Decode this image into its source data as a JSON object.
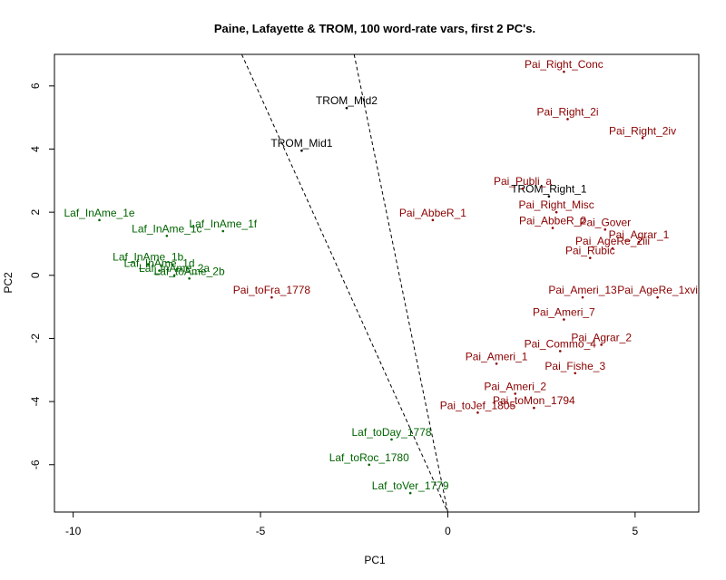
{
  "chart_data": {
    "type": "scatter",
    "title": "Paine, Lafayette & TROM, 100 word-rate vars, first 2 PC's.",
    "xlabel": "PC1",
    "ylabel": "PC2",
    "xlim": [
      -10.5,
      6.7
    ],
    "ylim": [
      -7.5,
      7.0
    ],
    "xticks": [
      -10,
      -5,
      0,
      5
    ],
    "yticks": [
      -6,
      -4,
      -2,
      0,
      2,
      4,
      6
    ],
    "grid": false,
    "legend": "none",
    "colors": {
      "Laf": "#006400",
      "Pai": "#8B0000",
      "TROM": "#000000",
      "line": "#000000"
    },
    "points": [
      {
        "label": "Laf_InAme_1e",
        "x": -9.3,
        "y": 1.75,
        "group": "Laf"
      },
      {
        "label": "Laf_InAme_1c",
        "x": -7.5,
        "y": 1.25,
        "group": "Laf"
      },
      {
        "label": "Laf_InAme_1f",
        "x": -6.0,
        "y": 1.4,
        "group": "Laf"
      },
      {
        "label": "Laf_InAme_1b",
        "x": -8.0,
        "y": 0.35,
        "group": "Laf"
      },
      {
        "label": "Laf_InAme_1d",
        "x": -7.7,
        "y": 0.15,
        "group": "Laf"
      },
      {
        "label": "Laf_InAme_2a",
        "x": -7.3,
        "y": 0.0,
        "group": "Laf"
      },
      {
        "label": "Laf_toAme_2b",
        "x": -6.9,
        "y": -0.1,
        "group": "Laf"
      },
      {
        "label": "Laf_toDay_1778",
        "x": -1.5,
        "y": -5.2,
        "group": "Laf"
      },
      {
        "label": "Laf_toRoc_1780",
        "x": -2.1,
        "y": -6.0,
        "group": "Laf"
      },
      {
        "label": "Laf_toVer_1779",
        "x": -1.0,
        "y": -6.9,
        "group": "Laf"
      },
      {
        "label": "TROM_Mid2",
        "x": -2.7,
        "y": 5.3,
        "group": "TROM"
      },
      {
        "label": "TROM_Mid1",
        "x": -3.9,
        "y": 3.95,
        "group": "TROM"
      },
      {
        "label": "TROM_Right_1",
        "x": 2.7,
        "y": 2.5,
        "group": "TROM"
      },
      {
        "label": "Pai_Right_Conc",
        "x": 3.1,
        "y": 6.45,
        "group": "Pai"
      },
      {
        "label": "Pai_Right_2i",
        "x": 3.2,
        "y": 4.95,
        "group": "Pai"
      },
      {
        "label": "Pai_Right_2iv",
        "x": 5.2,
        "y": 4.35,
        "group": "Pai"
      },
      {
        "label": "Pai_Publi_a",
        "x": 2.0,
        "y": 2.75,
        "group": "Pai"
      },
      {
        "label": "Pai_AbbeR_1",
        "x": -0.4,
        "y": 1.75,
        "group": "Pai"
      },
      {
        "label": "Pai_Right_Misc",
        "x": 2.9,
        "y": 2.0,
        "group": "Pai"
      },
      {
        "label": "Pai_AbbeR_2",
        "x": 2.8,
        "y": 1.5,
        "group": "Pai"
      },
      {
        "label": "Pai_Gover",
        "x": 4.2,
        "y": 1.45,
        "group": "Pai"
      },
      {
        "label": "Pai_Agrar_1",
        "x": 5.1,
        "y": 1.05,
        "group": "Pai"
      },
      {
        "label": "Pai_AgeRe_2iii",
        "x": 4.4,
        "y": 0.85,
        "group": "Pai"
      },
      {
        "label": "Pai_Rubic",
        "x": 3.8,
        "y": 0.55,
        "group": "Pai"
      },
      {
        "label": "Pai_toFra_1778",
        "x": -4.7,
        "y": -0.7,
        "group": "Pai"
      },
      {
        "label": "Pai_Ameri_13",
        "x": 3.6,
        "y": -0.7,
        "group": "Pai"
      },
      {
        "label": "Pai_AgeRe_1xvi",
        "x": 5.6,
        "y": -0.7,
        "group": "Pai"
      },
      {
        "label": "Pai_Ameri_7",
        "x": 3.1,
        "y": -1.4,
        "group": "Pai"
      },
      {
        "label": "Pai_Agrar_2",
        "x": 4.1,
        "y": -2.2,
        "group": "Pai"
      },
      {
        "label": "Pai_Commo_4",
        "x": 3.0,
        "y": -2.4,
        "group": "Pai"
      },
      {
        "label": "Pai_Ameri_1",
        "x": 1.3,
        "y": -2.8,
        "group": "Pai"
      },
      {
        "label": "Pai_Fishe_3",
        "x": 3.4,
        "y": -3.1,
        "group": "Pai"
      },
      {
        "label": "Pai_Ameri_2",
        "x": 1.8,
        "y": -3.75,
        "group": "Pai"
      },
      {
        "label": "Pai_toMon_1794",
        "x": 2.3,
        "y": -4.2,
        "group": "Pai"
      },
      {
        "label": "Pai_toJef_1805",
        "x": 0.8,
        "y": -4.35,
        "group": "Pai"
      }
    ],
    "lines": [
      {
        "from": [
          -5.5,
          7.0
        ],
        "to": [
          0.0,
          -7.5
        ],
        "style": "dashed"
      },
      {
        "from": [
          -2.5,
          7.0
        ],
        "to": [
          0.0,
          -7.5
        ],
        "style": "dashed"
      }
    ]
  }
}
